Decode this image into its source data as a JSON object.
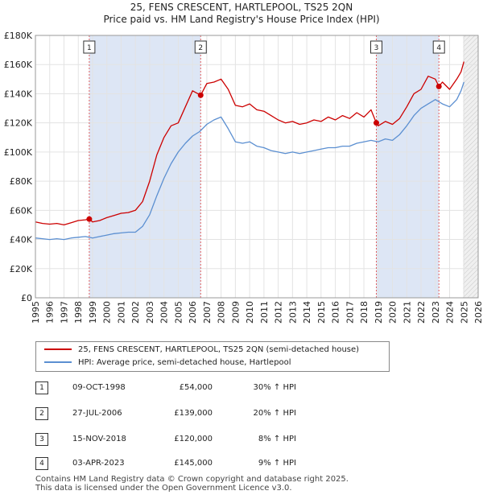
{
  "title_line1": "25, FENS CRESCENT, HARTLEPOOL, TS25 2QN",
  "title_line2": "Price paid vs. HM Land Registry's House Price Index (HPI)",
  "legend": [
    {
      "label": "25, FENS CRESCENT, HARTLEPOOL, TS25 2QN (semi-detached house)",
      "color": "#cc0000"
    },
    {
      "label": "HPI: Average price, semi-detached house, Hartlepool",
      "color": "#5b8fd1"
    }
  ],
  "sales": [
    {
      "num": "1",
      "date": "09-OCT-1998",
      "price": "£54,000",
      "diff": "30% ↑ HPI"
    },
    {
      "num": "2",
      "date": "27-JUL-2006",
      "price": "£139,000",
      "diff": "20% ↑ HPI"
    },
    {
      "num": "3",
      "date": "15-NOV-2018",
      "price": "£120,000",
      "diff": "8% ↑ HPI"
    },
    {
      "num": "4",
      "date": "03-APR-2023",
      "price": "£145,000",
      "diff": "9% ↑ HPI"
    }
  ],
  "footer_line1": "Contains HM Land Registry data © Crown copyright and database right 2025.",
  "footer_line2": "This data is licensed under the Open Government Licence v3.0.",
  "chart_data": {
    "type": "line",
    "title": "Price paid vs. HM Land Registry's House Price Index (HPI)",
    "xlim": [
      1995,
      2026
    ],
    "ylim": [
      0,
      180000
    ],
    "y_ticks": [
      0,
      20000,
      40000,
      60000,
      80000,
      100000,
      120000,
      140000,
      160000,
      180000
    ],
    "y_tick_labels": [
      "£0",
      "£20K",
      "£40K",
      "£60K",
      "£80K",
      "£100K",
      "£120K",
      "£140K",
      "£160K",
      "£180K"
    ],
    "x_ticks": [
      1995,
      1996,
      1997,
      1998,
      1999,
      2000,
      2001,
      2002,
      2003,
      2004,
      2005,
      2006,
      2007,
      2008,
      2009,
      2010,
      2011,
      2012,
      2013,
      2014,
      2015,
      2016,
      2017,
      2018,
      2019,
      2020,
      2021,
      2022,
      2023,
      2024,
      2025,
      2026
    ],
    "colors": {
      "price": "#cc0000",
      "hpi": "#5b8fd1",
      "shade": "#dde6f5",
      "future": "#e8e8e8",
      "grid": "#e3e3e3",
      "marker_line": "#e06060"
    },
    "shade_ranges": [
      [
        1998.77,
        2006.57
      ],
      [
        2018.87,
        2023.25
      ]
    ],
    "future_from": 2024.95,
    "sale_markers": [
      {
        "num": "1",
        "x": 1998.77,
        "y": 54000
      },
      {
        "num": "2",
        "x": 2006.57,
        "y": 139000
      },
      {
        "num": "3",
        "x": 2018.87,
        "y": 120000
      },
      {
        "num": "4",
        "x": 2023.25,
        "y": 145000
      }
    ],
    "series": [
      {
        "name": "25, FENS CRESCENT, HARTLEPOOL, TS25 2QN (semi-detached house)",
        "x": [
          1995,
          1995.5,
          1996,
          1996.5,
          1997,
          1997.5,
          1998,
          1998.5,
          1998.77,
          1999,
          1999.5,
          2000,
          2000.5,
          2001,
          2001.5,
          2002,
          2002.5,
          2003,
          2003.5,
          2004,
          2004.5,
          2005,
          2005.5,
          2006,
          2006.57,
          2007,
          2007.5,
          2008,
          2008.5,
          2009,
          2009.5,
          2010,
          2010.5,
          2011,
          2011.5,
          2012,
          2012.5,
          2013,
          2013.5,
          2014,
          2014.5,
          2015,
          2015.5,
          2016,
          2016.5,
          2017,
          2017.5,
          2018,
          2018.5,
          2018.87,
          2019,
          2019.5,
          2020,
          2020.5,
          2021,
          2021.5,
          2022,
          2022.5,
          2023,
          2023.25,
          2023.5,
          2024,
          2024.5,
          2024.8,
          2025.0
        ],
        "values": [
          52000,
          51000,
          50500,
          51000,
          50000,
          51500,
          53000,
          53500,
          54000,
          52000,
          53000,
          55000,
          56500,
          58000,
          58500,
          60000,
          66000,
          80000,
          98000,
          110000,
          118000,
          120000,
          131000,
          142000,
          139000,
          147000,
          148000,
          150000,
          143000,
          132000,
          131000,
          133000,
          129000,
          128000,
          125000,
          122000,
          120000,
          121000,
          119000,
          120000,
          122000,
          121000,
          124000,
          122000,
          125000,
          123000,
          127000,
          124000,
          129000,
          120000,
          118000,
          121000,
          119000,
          123000,
          131000,
          140000,
          143000,
          152000,
          150000,
          145000,
          148000,
          143000,
          150000,
          155000,
          162000
        ]
      },
      {
        "name": "HPI: Average price, semi-detached house, Hartlepool",
        "x": [
          1995,
          1995.5,
          1996,
          1996.5,
          1997,
          1997.5,
          1998,
          1998.5,
          1998.77,
          1999,
          1999.5,
          2000,
          2000.5,
          2001,
          2001.5,
          2002,
          2002.5,
          2003,
          2003.5,
          2004,
          2004.5,
          2005,
          2005.5,
          2006,
          2006.5,
          2007,
          2007.5,
          2008,
          2008.5,
          2009,
          2009.5,
          2010,
          2010.5,
          2011,
          2011.5,
          2012,
          2012.5,
          2013,
          2013.5,
          2014,
          2014.5,
          2015,
          2015.5,
          2016,
          2016.5,
          2017,
          2017.5,
          2018,
          2018.5,
          2019,
          2019.5,
          2020,
          2020.5,
          2021,
          2021.5,
          2022,
          2022.5,
          2023,
          2023.5,
          2024,
          2024.5,
          2024.8,
          2025.0
        ],
        "values": [
          41000,
          40500,
          40000,
          40500,
          40000,
          41000,
          41500,
          42000,
          41500,
          41000,
          42000,
          43000,
          44000,
          44500,
          45000,
          45000,
          49000,
          57000,
          70000,
          82000,
          92000,
          100000,
          106000,
          111000,
          114000,
          119000,
          122000,
          124000,
          116000,
          107000,
          106000,
          107000,
          104000,
          103000,
          101000,
          100000,
          99000,
          100000,
          99000,
          100000,
          101000,
          102000,
          103000,
          103000,
          104000,
          104000,
          106000,
          107000,
          108000,
          107000,
          109000,
          108000,
          112000,
          118000,
          125000,
          130000,
          133000,
          136000,
          133000,
          131000,
          136000,
          142000,
          148000
        ]
      }
    ]
  }
}
